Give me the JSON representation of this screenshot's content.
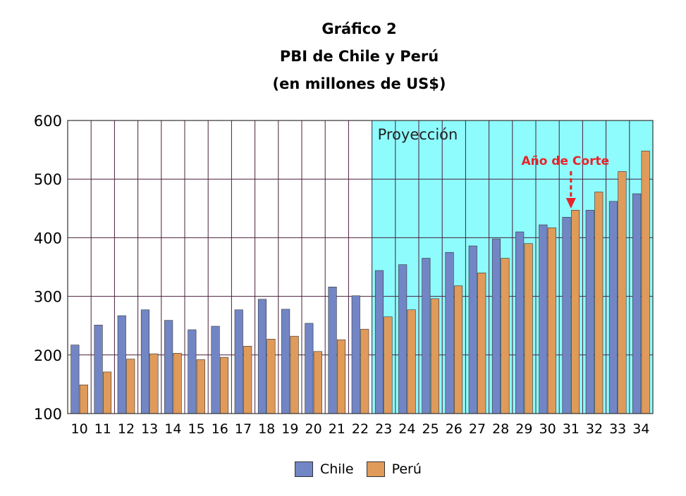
{
  "chart_data": {
    "type": "bar",
    "title": "Gráfico 2",
    "subtitle_1": "PBI de Chile y Perú",
    "subtitle_2": "(en millones de US$)",
    "categories": [
      "10",
      "11",
      "12",
      "13",
      "14",
      "15",
      "16",
      "17",
      "18",
      "19",
      "20",
      "21",
      "22",
      "23",
      "24",
      "25",
      "26",
      "27",
      "28",
      "29",
      "30",
      "31",
      "32",
      "33",
      "34"
    ],
    "series": [
      {
        "name": "Chile",
        "color": "#7286C6",
        "values": [
          217,
          251,
          267,
          277,
          259,
          243,
          249,
          277,
          295,
          278,
          254,
          316,
          301,
          344,
          354,
          365,
          375,
          386,
          398,
          410,
          422,
          435,
          447,
          462,
          475
        ]
      },
      {
        "name": "Perú",
        "color": "#E09A5A",
        "values": [
          149,
          171,
          193,
          202,
          203,
          192,
          196,
          215,
          227,
          232,
          206,
          226,
          244,
          265,
          277,
          296,
          318,
          340,
          365,
          390,
          417,
          447,
          478,
          513,
          548
        ]
      }
    ],
    "ylim": [
      100,
      600
    ],
    "yticks": [
      100,
      200,
      300,
      400,
      500,
      600
    ],
    "xlabel": "",
    "ylabel": "",
    "grid": true,
    "legend_position": "bottom",
    "projection_start": "23",
    "projection_label": "Proyección",
    "projection_color": "#8EFBFC",
    "cutoff_year": "31",
    "cutoff_label": "Año de Corte",
    "cutoff_color": "#E8232A"
  }
}
